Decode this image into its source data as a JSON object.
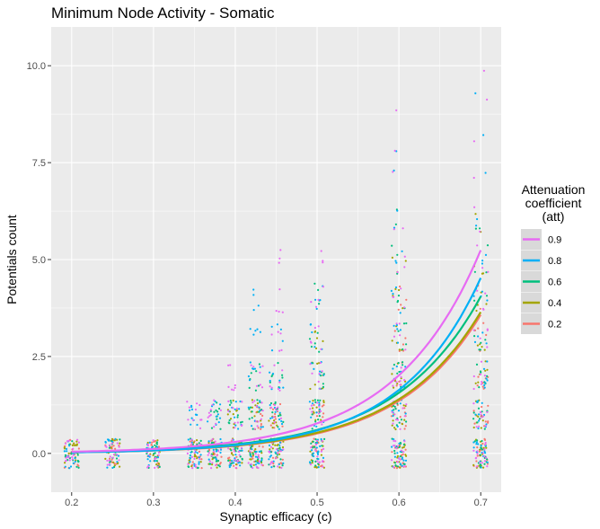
{
  "chart_data": {
    "type": "scatter",
    "title": "Minimum Node Activity - Somatic",
    "xlabel": "Synaptic efficacy (c)",
    "ylabel": "Potentials count",
    "xlim": [
      0.175,
      0.725
    ],
    "ylim": [
      -1.0,
      11.0
    ],
    "x_ticks": [
      0.2,
      0.3,
      0.4,
      0.5,
      0.6,
      0.7
    ],
    "x_tick_labels": [
      "0.2",
      "0.3",
      "0.4",
      "0.5",
      "0.6",
      "0.7"
    ],
    "y_ticks": [
      0.0,
      2.5,
      5.0,
      7.5,
      10.0
    ],
    "y_tick_labels": [
      "0.0",
      "2.5",
      "5.0",
      "7.5",
      "10.0"
    ],
    "grid": true,
    "legend": {
      "title": "Attenuation coefficient (att)",
      "title_lines": [
        "Attenuation",
        "coefficient",
        "(att)"
      ],
      "placement": "right"
    },
    "c_values": [
      0.2,
      0.25,
      0.3,
      0.35,
      0.375,
      0.4,
      0.425,
      0.45,
      0.5,
      0.6,
      0.7
    ],
    "series": [
      {
        "name": "0.9",
        "color": "#E76BF3",
        "fit_b": 0.044,
        "fit_k": 9.56,
        "max_count": [
          0,
          0,
          0,
          1,
          1,
          2,
          2,
          5,
          5,
          9,
          10
        ]
      },
      {
        "name": "0.8",
        "color": "#00B0F6",
        "fit_b": 0.028,
        "fit_k": 10.17,
        "max_count": [
          0,
          0,
          0,
          1,
          1,
          1,
          4,
          3,
          4,
          8,
          9
        ]
      },
      {
        "name": "0.6",
        "color": "#00BF7D",
        "fit_b": 0.035,
        "fit_k": 9.5,
        "max_count": [
          0,
          0,
          0,
          0,
          1,
          1,
          2,
          2,
          4,
          6,
          6
        ]
      },
      {
        "name": "0.4",
        "color": "#A3A500",
        "fit_b": 0.03,
        "fit_k": 9.6,
        "max_count": [
          0,
          0,
          0,
          0,
          0,
          1,
          1,
          1,
          3,
          5,
          6
        ]
      },
      {
        "name": "0.2",
        "color": "#F8766D",
        "fit_b": 0.028,
        "fit_k": 9.7,
        "max_count": [
          0,
          0,
          0,
          0,
          0,
          0,
          1,
          1,
          1,
          4,
          4
        ]
      }
    ],
    "legend_order": [
      "0.9",
      "0.8",
      "0.6",
      "0.4",
      "0.2"
    ]
  }
}
